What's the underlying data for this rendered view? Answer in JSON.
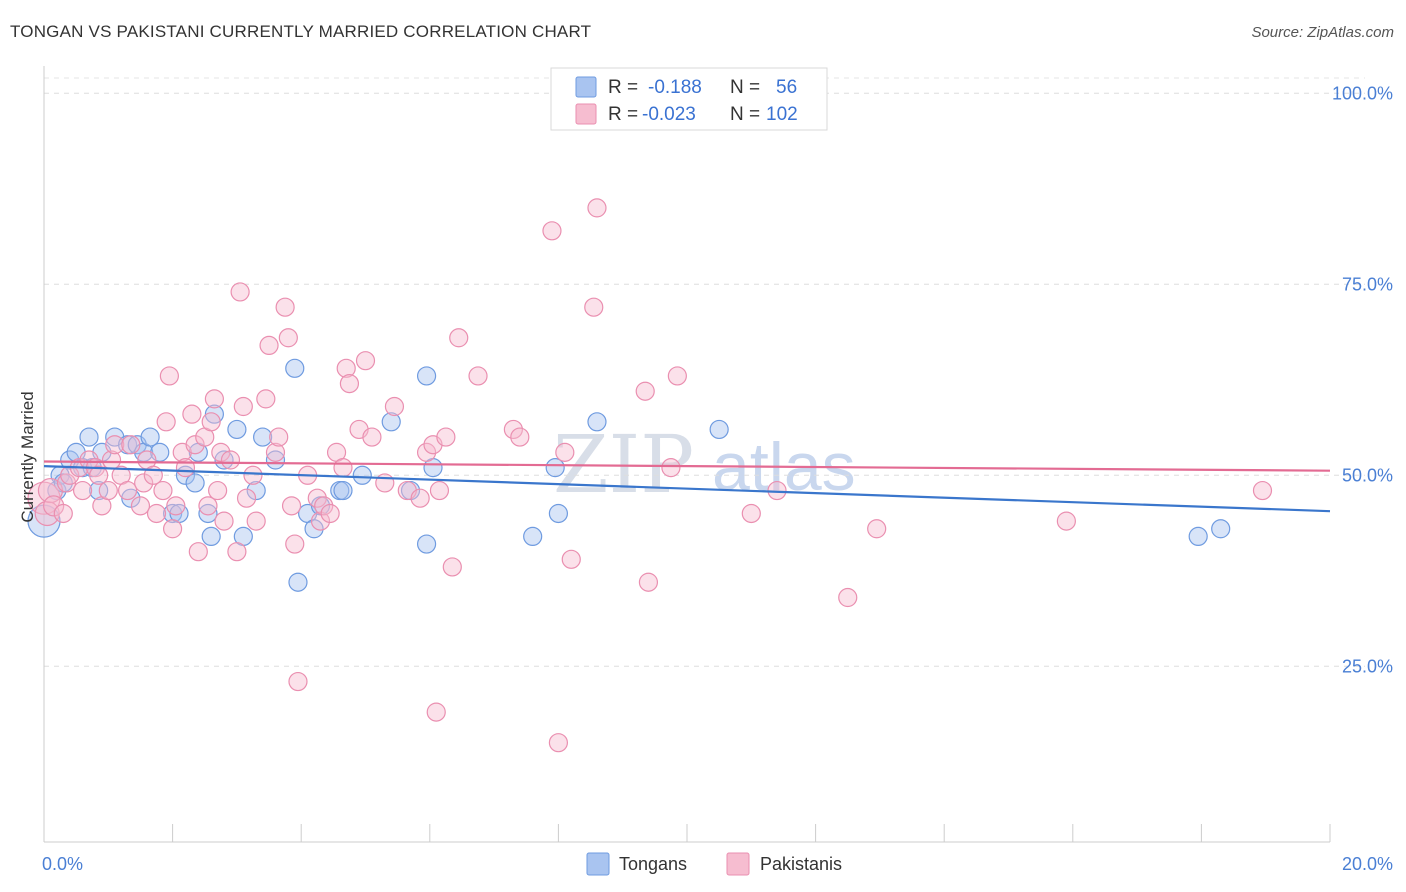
{
  "header": {
    "title": "TONGAN VS PAKISTANI CURRENTLY MARRIED CORRELATION CHART",
    "source": "Source: ZipAtlas.com"
  },
  "watermark": {
    "zip": "ZIP",
    "atlas": "atlas"
  },
  "legend": {
    "rows": [
      {
        "r_label": "R =",
        "r_value": "-0.188",
        "n_label": "N =",
        "n_value": "56",
        "color": "#a9c4f0",
        "stroke": "#6f9be0"
      },
      {
        "r_label": "R =",
        "r_value": "-0.023",
        "n_label": "N =",
        "n_value": "102",
        "color": "#f6bdd0",
        "stroke": "#ea8fb0"
      }
    ]
  },
  "bottom_legend": {
    "items": [
      {
        "label": "Tongans",
        "color": "#a9c4f0",
        "stroke": "#6f9be0"
      },
      {
        "label": "Pakistanis",
        "color": "#f6bdd0",
        "stroke": "#ea8fb0"
      }
    ]
  },
  "chart_data": {
    "type": "scatter",
    "title": "TONGAN VS PAKISTANI CURRENTLY MARRIED CORRELATION CHART",
    "xlabel": "",
    "ylabel": "Currently Married",
    "xlim": [
      0,
      20
    ],
    "ylim": [
      2,
      102
    ],
    "x_tick_labels": [
      {
        "value": 0,
        "label": "0.0%"
      },
      {
        "value": 20,
        "label": "20.0%"
      }
    ],
    "y_tick_labels": [
      {
        "value": 25,
        "label": "25.0%"
      },
      {
        "value": 50,
        "label": "50.0%"
      },
      {
        "value": 75,
        "label": "75.0%"
      },
      {
        "value": 100,
        "label": "100.0%"
      }
    ],
    "grid": true,
    "legend_position": "top-center",
    "series": [
      {
        "name": "Tongans",
        "color": "#6f9be0",
        "fill": "#a9c4f0",
        "trend": {
          "x": [
            0,
            20
          ],
          "y": [
            51.2,
            45.3
          ],
          "color": "#3a76cc"
        },
        "points": [
          [
            0.0,
            44,
            16
          ],
          [
            0.2,
            48,
            9
          ],
          [
            0.25,
            50,
            9
          ],
          [
            0.3,
            49,
            9
          ],
          [
            0.4,
            52,
            9
          ],
          [
            0.5,
            53,
            9
          ],
          [
            0.6,
            51,
            9
          ],
          [
            0.7,
            55,
            9
          ],
          [
            0.75,
            51,
            9
          ],
          [
            0.85,
            48,
            9
          ],
          [
            0.9,
            53,
            9
          ],
          [
            1.1,
            55,
            9
          ],
          [
            1.3,
            54,
            9
          ],
          [
            1.35,
            47,
            9
          ],
          [
            1.45,
            54,
            9
          ],
          [
            1.55,
            53,
            9
          ],
          [
            1.65,
            55,
            9
          ],
          [
            1.8,
            53,
            9
          ],
          [
            2.0,
            45,
            9
          ],
          [
            2.1,
            45,
            9
          ],
          [
            2.2,
            50,
            9
          ],
          [
            2.35,
            49,
            9
          ],
          [
            2.4,
            53,
            9
          ],
          [
            2.55,
            45,
            9
          ],
          [
            2.6,
            42,
            9
          ],
          [
            2.65,
            58,
            9
          ],
          [
            2.8,
            52,
            9
          ],
          [
            3.0,
            56,
            9
          ],
          [
            3.1,
            42,
            9
          ],
          [
            3.3,
            48,
            9
          ],
          [
            3.4,
            55,
            9
          ],
          [
            3.6,
            52,
            9
          ],
          [
            3.9,
            64,
            9
          ],
          [
            3.95,
            36,
            9
          ],
          [
            4.1,
            45,
            9
          ],
          [
            4.2,
            43,
            9
          ],
          [
            4.3,
            46,
            9
          ],
          [
            4.6,
            48,
            9
          ],
          [
            4.65,
            48,
            9
          ],
          [
            4.95,
            50,
            9
          ],
          [
            5.4,
            57,
            9
          ],
          [
            5.7,
            48,
            9
          ],
          [
            5.95,
            63,
            9
          ],
          [
            5.95,
            41,
            9
          ],
          [
            6.05,
            51,
            9
          ],
          [
            7.6,
            42,
            9
          ],
          [
            7.95,
            51,
            9
          ],
          [
            8.0,
            45,
            9
          ],
          [
            8.6,
            57,
            9
          ],
          [
            10.5,
            56,
            9
          ],
          [
            17.95,
            42,
            9
          ],
          [
            18.3,
            43,
            9
          ]
        ]
      },
      {
        "name": "Pakistanis",
        "color": "#ea8fb0",
        "fill": "#f6bdd0",
        "trend": {
          "x": [
            0,
            20
          ],
          "y": [
            51.8,
            50.6
          ],
          "color": "#e36b93"
        },
        "points": [
          [
            0.0,
            47,
            16
          ],
          [
            0.05,
            45,
            12
          ],
          [
            0.1,
            48,
            12
          ],
          [
            0.15,
            46,
            10
          ],
          [
            0.3,
            45,
            9
          ],
          [
            0.35,
            49,
            9
          ],
          [
            0.4,
            50,
            9
          ],
          [
            0.55,
            51,
            9
          ],
          [
            0.6,
            48,
            9
          ],
          [
            0.7,
            52,
            9
          ],
          [
            0.8,
            51,
            9
          ],
          [
            0.85,
            50,
            9
          ],
          [
            0.9,
            46,
            9
          ],
          [
            1.0,
            48,
            9
          ],
          [
            1.05,
            52,
            9
          ],
          [
            1.1,
            54,
            9
          ],
          [
            1.2,
            50,
            9
          ],
          [
            1.3,
            48,
            9
          ],
          [
            1.35,
            54,
            9
          ],
          [
            1.5,
            46,
            9
          ],
          [
            1.55,
            49,
            9
          ],
          [
            1.6,
            52,
            9
          ],
          [
            1.7,
            50,
            9
          ],
          [
            1.75,
            45,
            9
          ],
          [
            1.85,
            48,
            9
          ],
          [
            1.9,
            57,
            9
          ],
          [
            1.95,
            63,
            9
          ],
          [
            2.0,
            43,
            9
          ],
          [
            2.05,
            46,
            9
          ],
          [
            2.15,
            53,
            9
          ],
          [
            2.2,
            51,
            9
          ],
          [
            2.3,
            58,
            9
          ],
          [
            2.35,
            54,
            9
          ],
          [
            2.4,
            40,
            9
          ],
          [
            2.5,
            55,
            9
          ],
          [
            2.55,
            46,
            9
          ],
          [
            2.6,
            57,
            9
          ],
          [
            2.65,
            60,
            9
          ],
          [
            2.7,
            48,
            9
          ],
          [
            2.75,
            53,
            9
          ],
          [
            2.8,
            44,
            9
          ],
          [
            2.9,
            52,
            9
          ],
          [
            3.0,
            40,
            9
          ],
          [
            3.05,
            74,
            9
          ],
          [
            3.1,
            59,
            9
          ],
          [
            3.15,
            47,
            9
          ],
          [
            3.25,
            50,
            9
          ],
          [
            3.3,
            44,
            9
          ],
          [
            3.45,
            60,
            9
          ],
          [
            3.5,
            67,
            9
          ],
          [
            3.6,
            53,
            9
          ],
          [
            3.65,
            55,
            9
          ],
          [
            3.75,
            72,
            9
          ],
          [
            3.8,
            68,
            9
          ],
          [
            3.85,
            46,
            9
          ],
          [
            3.9,
            41,
            9
          ],
          [
            3.95,
            23,
            9
          ],
          [
            4.1,
            50,
            9
          ],
          [
            4.25,
            47,
            9
          ],
          [
            4.3,
            44,
            9
          ],
          [
            4.35,
            46,
            9
          ],
          [
            4.45,
            45,
            9
          ],
          [
            4.55,
            53,
            9
          ],
          [
            4.65,
            51,
            9
          ],
          [
            4.7,
            64,
            9
          ],
          [
            4.75,
            62,
            9
          ],
          [
            4.9,
            56,
            9
          ],
          [
            5.0,
            65,
            9
          ],
          [
            5.1,
            55,
            9
          ],
          [
            5.3,
            49,
            9
          ],
          [
            5.45,
            59,
            9
          ],
          [
            5.65,
            48,
            9
          ],
          [
            5.85,
            47,
            9
          ],
          [
            5.95,
            53,
            9
          ],
          [
            6.05,
            54,
            9
          ],
          [
            6.1,
            19,
            9
          ],
          [
            6.15,
            48,
            9
          ],
          [
            6.25,
            55,
            9
          ],
          [
            6.35,
            38,
            9
          ],
          [
            6.45,
            68,
            9
          ],
          [
            6.75,
            63,
            9
          ],
          [
            7.3,
            56,
            9
          ],
          [
            7.4,
            55,
            9
          ],
          [
            7.9,
            82,
            9
          ],
          [
            8.0,
            15,
            9
          ],
          [
            8.1,
            53,
            9
          ],
          [
            8.2,
            39,
            9
          ],
          [
            8.55,
            72,
            9
          ],
          [
            8.6,
            85,
            9
          ],
          [
            9.35,
            61,
            9
          ],
          [
            9.4,
            36,
            9
          ],
          [
            9.75,
            51,
            9
          ],
          [
            9.85,
            63,
            9
          ],
          [
            11.0,
            45,
            9
          ],
          [
            11.4,
            48,
            9
          ],
          [
            12.5,
            34,
            9
          ],
          [
            12.95,
            43,
            9
          ],
          [
            15.9,
            44,
            9
          ],
          [
            18.95,
            48,
            9
          ]
        ]
      }
    ]
  }
}
